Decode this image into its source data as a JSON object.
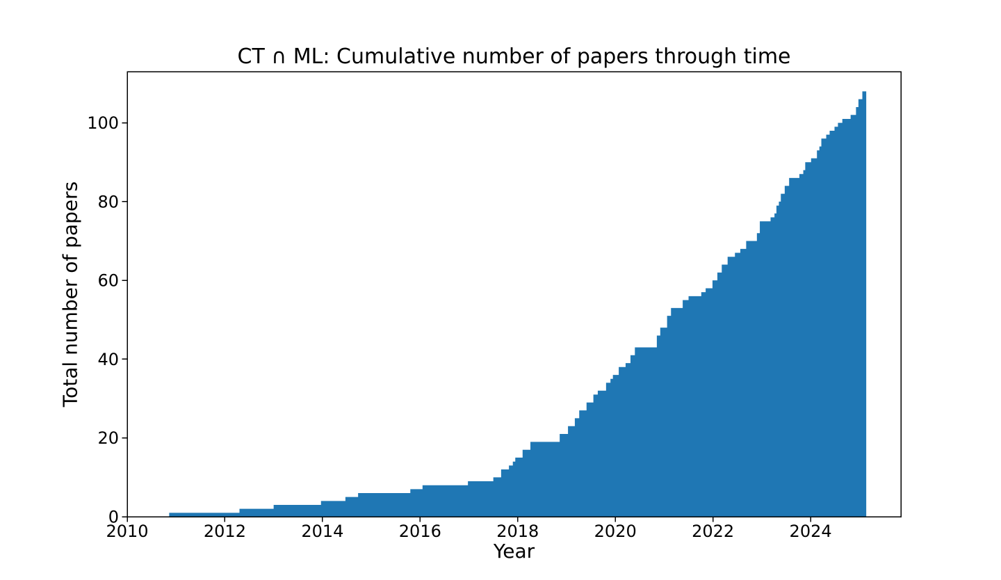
{
  "chart_data": {
    "type": "area",
    "variant": "cumulative-step",
    "title": "CT ∩ ML: Cumulative number of papers through time",
    "xlabel": "Year",
    "ylabel": "Total number of papers",
    "xlim": [
      2010,
      2025.85
    ],
    "ylim": [
      0,
      113
    ],
    "xticks": [
      2010,
      2012,
      2014,
      2016,
      2018,
      2020,
      2022,
      2024
    ],
    "yticks": [
      0,
      20,
      40,
      60,
      80,
      100
    ],
    "grid": false,
    "legend": null,
    "fill_color": "#1f77b4",
    "axis_color": "#000000",
    "background_color": "#ffffff",
    "x_end": 2025.14,
    "final_count": 108,
    "points": [
      [
        2010.86,
        1
      ],
      [
        2012.3,
        2
      ],
      [
        2013.0,
        3
      ],
      [
        2013.97,
        4
      ],
      [
        2014.47,
        5
      ],
      [
        2014.73,
        6
      ],
      [
        2015.8,
        7
      ],
      [
        2016.05,
        8
      ],
      [
        2016.98,
        9
      ],
      [
        2017.5,
        10
      ],
      [
        2017.66,
        12
      ],
      [
        2017.82,
        13
      ],
      [
        2017.9,
        14
      ],
      [
        2017.95,
        15
      ],
      [
        2018.1,
        17
      ],
      [
        2018.26,
        19
      ],
      [
        2018.86,
        21
      ],
      [
        2019.03,
        23
      ],
      [
        2019.17,
        25
      ],
      [
        2019.26,
        27
      ],
      [
        2019.41,
        29
      ],
      [
        2019.55,
        31
      ],
      [
        2019.64,
        32
      ],
      [
        2019.81,
        34
      ],
      [
        2019.9,
        35
      ],
      [
        2019.95,
        36
      ],
      [
        2020.07,
        38
      ],
      [
        2020.21,
        39
      ],
      [
        2020.31,
        41
      ],
      [
        2020.4,
        43
      ],
      [
        2020.85,
        46
      ],
      [
        2020.92,
        48
      ],
      [
        2021.06,
        51
      ],
      [
        2021.14,
        53
      ],
      [
        2021.38,
        55
      ],
      [
        2021.5,
        56
      ],
      [
        2021.76,
        57
      ],
      [
        2021.85,
        58
      ],
      [
        2021.99,
        60
      ],
      [
        2022.09,
        62
      ],
      [
        2022.18,
        64
      ],
      [
        2022.3,
        66
      ],
      [
        2022.45,
        67
      ],
      [
        2022.56,
        68
      ],
      [
        2022.68,
        70
      ],
      [
        2022.9,
        72
      ],
      [
        2022.96,
        75
      ],
      [
        2023.18,
        76
      ],
      [
        2023.26,
        77
      ],
      [
        2023.3,
        79
      ],
      [
        2023.35,
        80
      ],
      [
        2023.39,
        82
      ],
      [
        2023.47,
        84
      ],
      [
        2023.56,
        86
      ],
      [
        2023.77,
        87
      ],
      [
        2023.85,
        88
      ],
      [
        2023.89,
        90
      ],
      [
        2024.01,
        91
      ],
      [
        2024.13,
        93
      ],
      [
        2024.18,
        94
      ],
      [
        2024.22,
        96
      ],
      [
        2024.32,
        97
      ],
      [
        2024.39,
        98
      ],
      [
        2024.49,
        99
      ],
      [
        2024.56,
        100
      ],
      [
        2024.65,
        101
      ],
      [
        2024.82,
        102
      ],
      [
        2024.93,
        104
      ],
      [
        2024.98,
        106
      ],
      [
        2025.06,
        108
      ]
    ]
  }
}
